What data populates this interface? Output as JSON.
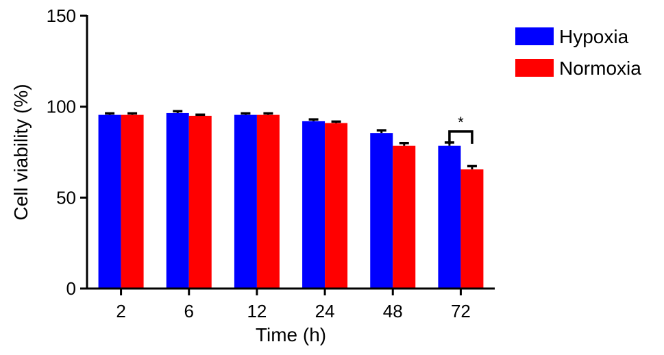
{
  "chart_data": {
    "type": "bar",
    "title": "",
    "xlabel": "Time (h)",
    "ylabel": "Cell viability (%)",
    "ylim": [
      0,
      150
    ],
    "yticks": [
      0,
      50,
      100,
      150
    ],
    "categories": [
      "2",
      "6",
      "12",
      "24",
      "48",
      "72"
    ],
    "series": [
      {
        "name": "Hypoxia",
        "color": "#0000FF",
        "values": [
          95.5,
          96.5,
          95.5,
          92.0,
          85.5,
          78.5
        ],
        "errors": [
          0.8,
          1.0,
          0.8,
          1.0,
          1.5,
          1.8
        ]
      },
      {
        "name": "Normoxia",
        "color": "#FF0000",
        "values": [
          95.5,
          95.0,
          95.5,
          91.0,
          78.5,
          65.5
        ],
        "errors": [
          0.8,
          0.6,
          0.8,
          0.8,
          1.5,
          1.8
        ]
      }
    ],
    "legend": "top-right",
    "grid": false,
    "annotations": [
      {
        "text": "*",
        "category": "72",
        "type": "significance-bracket"
      }
    ]
  }
}
